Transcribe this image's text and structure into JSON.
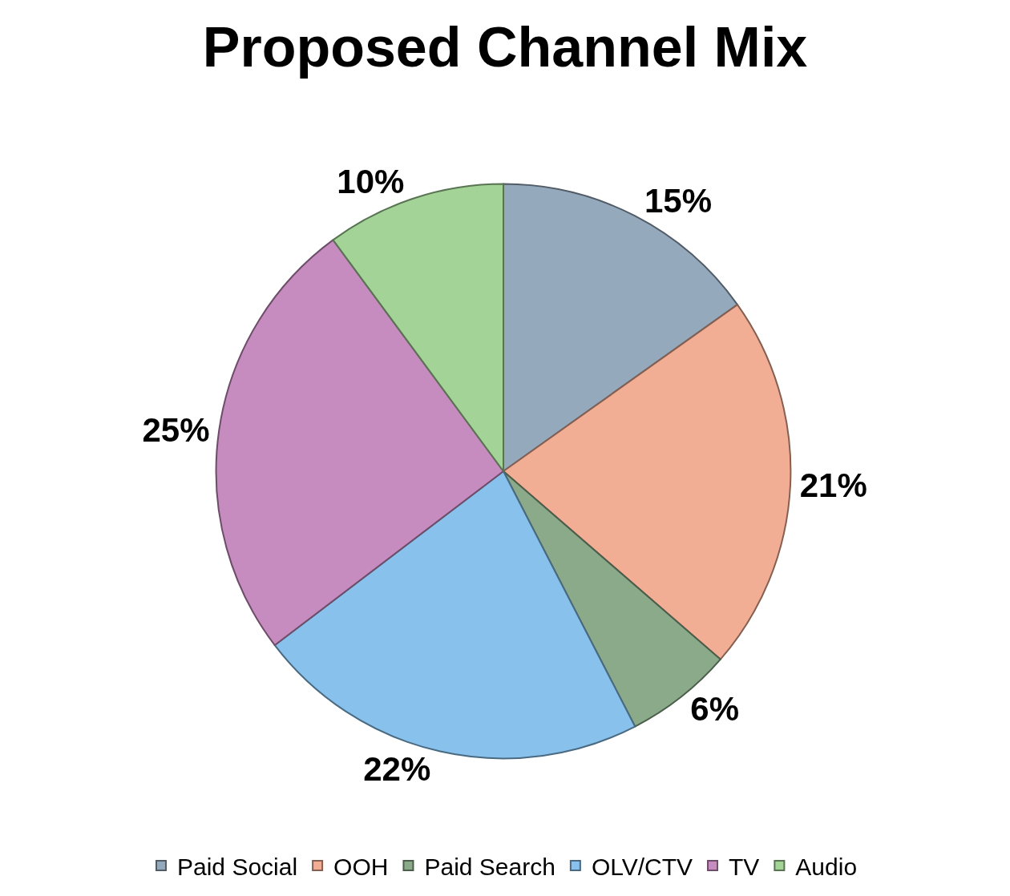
{
  "chart_data": {
    "type": "pie",
    "title": "Proposed Channel Mix",
    "categories": [
      "Paid Social",
      "OOH",
      "Paid Search",
      "OLV/CTV",
      "TV",
      "Audio"
    ],
    "values": [
      15,
      21,
      6,
      22,
      25,
      10
    ],
    "value_labels": [
      "15%",
      "21%",
      "6%",
      "22%",
      "25%",
      "10%"
    ],
    "colors": [
      "#94a9bc",
      "#f2ae94",
      "#8aaa8a",
      "#87c1ec",
      "#c78cbf",
      "#a3d396"
    ],
    "legend": "bottom"
  }
}
